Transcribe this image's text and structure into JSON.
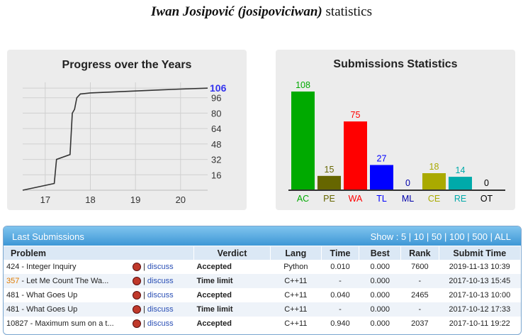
{
  "page": {
    "title_bold": "Iwan Josipović (josipoviciwan)",
    "title_rest": " statistics"
  },
  "progress": {
    "title": "Progress over the Years",
    "chart_data": {
      "type": "line",
      "title": "Progress over the Years",
      "x_ticks": [
        "17",
        "18",
        "19",
        "20"
      ],
      "y_ticks": [
        "16",
        "32",
        "48",
        "64",
        "80",
        "96"
      ],
      "current_value": "106",
      "xlim": [
        16.5,
        20.6
      ],
      "ylim": [
        0,
        112
      ],
      "x": [
        16.5,
        17.2,
        17.25,
        17.55,
        17.6,
        17.65,
        17.7,
        17.78,
        17.8,
        18.0,
        19.0,
        19.5,
        20.0,
        20.6
      ],
      "y": [
        0,
        7,
        32,
        37,
        80,
        84,
        96,
        100,
        100,
        101,
        103,
        104,
        105,
        106
      ]
    }
  },
  "submissions_stats": {
    "title": "Submissions Statistics",
    "chart_data": {
      "type": "bar",
      "title": "Submissions Statistics",
      "categories": [
        "AC",
        "PE",
        "WA",
        "TL",
        "ML",
        "CE",
        "RE",
        "OT"
      ],
      "values": [
        108,
        15,
        75,
        27,
        0,
        18,
        14,
        0
      ],
      "colors": [
        "#00aa00",
        "#666600",
        "#ff0000",
        "#0000ff",
        "#0000aa",
        "#aaaa00",
        "#00aaaa",
        "#000000"
      ],
      "label_colors": [
        "#00aa00",
        "#666600",
        "#ff0000",
        "#0000ff",
        "#0000aa",
        "#aaaa00",
        "#00aaaa",
        "#000000"
      ],
      "ylim": [
        0,
        115
      ]
    }
  },
  "last_submissions": {
    "title": "Last Submissions",
    "show_prefix": "Show : ",
    "show_options": [
      "5",
      "10",
      "50",
      "100",
      "500",
      "ALL"
    ],
    "columns": [
      "Problem",
      "Verdict",
      "Lang",
      "Time",
      "Best",
      "Rank",
      "Submit Time"
    ],
    "discuss_label": "discuss",
    "rows": [
      {
        "num": "424",
        "num_orange": false,
        "name": " - Integer Inquiry",
        "verdict": "Accepted",
        "ok": true,
        "lang": "Python",
        "time": "0.010",
        "best": "0.000",
        "rank": "7600",
        "submit": "2019-11-13 10:39"
      },
      {
        "num": "357",
        "num_orange": true,
        "name": " - Let Me Count The Wa...",
        "verdict": "Time limit",
        "ok": false,
        "lang": "C++11",
        "time": "-",
        "best": "0.000",
        "rank": "-",
        "submit": "2017-10-13 15:45"
      },
      {
        "num": "481",
        "num_orange": false,
        "name": " - What Goes Up",
        "verdict": "Accepted",
        "ok": true,
        "lang": "C++11",
        "time": "0.040",
        "best": "0.000",
        "rank": "2465",
        "submit": "2017-10-13 10:00"
      },
      {
        "num": "481",
        "num_orange": false,
        "name": " - What Goes Up",
        "verdict": "Time limit",
        "ok": false,
        "lang": "C++11",
        "time": "-",
        "best": "0.000",
        "rank": "-",
        "submit": "2017-10-12 17:33"
      },
      {
        "num": "10827",
        "num_orange": false,
        "name": " - Maximum sum on a t...",
        "verdict": "Accepted",
        "ok": true,
        "lang": "C++11",
        "time": "0.940",
        "best": "0.000",
        "rank": "2037",
        "submit": "2017-10-11 19:22"
      }
    ]
  }
}
